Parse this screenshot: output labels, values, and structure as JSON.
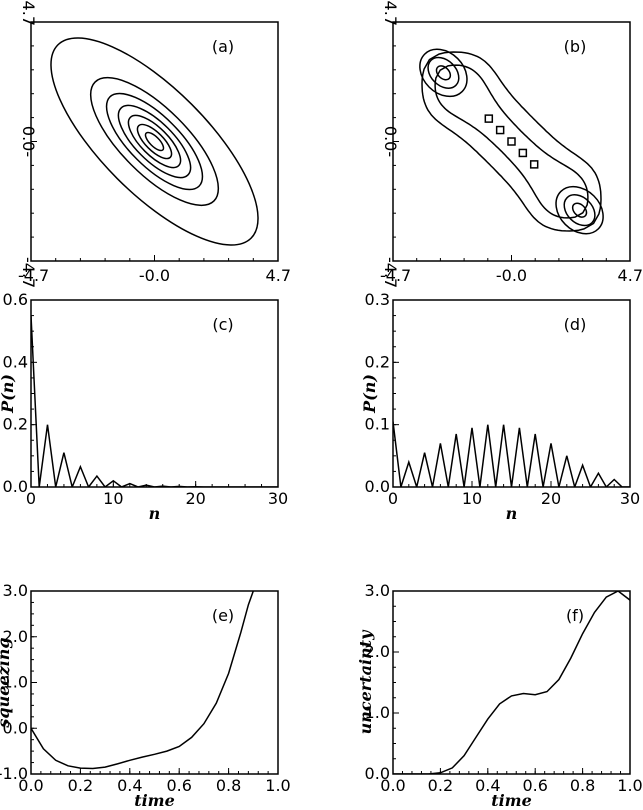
{
  "chart_data": [
    {
      "id": "a",
      "type": "contour",
      "panel_label": "(a)",
      "xlim": [
        -4.7,
        4.7
      ],
      "ylim": [
        -4.7,
        4.7
      ],
      "x_tick_labels": [
        "-4.7",
        "-0.0",
        "4.7"
      ],
      "y_tick_labels": [
        "-4.7",
        "0.0-",
        "4.7"
      ],
      "ellipses": [
        {
          "a": 5.2,
          "b": 2.0
        },
        {
          "a": 3.2,
          "b": 1.25
        },
        {
          "a": 2.4,
          "b": 0.95
        },
        {
          "a": 1.8,
          "b": 0.72
        },
        {
          "a": 1.3,
          "b": 0.52
        },
        {
          "a": 0.85,
          "b": 0.34
        },
        {
          "a": 0.45,
          "b": 0.18
        }
      ]
    },
    {
      "id": "b",
      "type": "contour",
      "panel_label": "(b)",
      "xlim": [
        -4.7,
        4.7
      ],
      "ylim": [
        -4.7,
        4.7
      ],
      "x_tick_labels": [
        "-4.7",
        "-0.0",
        "4.7"
      ],
      "y_tick_labels": [
        "-4.7",
        "0.0-",
        "4.7"
      ],
      "peaks": [
        {
          "x": -2.7,
          "y": 2.7
        },
        {
          "x": 2.7,
          "y": -2.7
        }
      ],
      "small_squares_y_equals_minus_x_at_x": [
        -0.9,
        -0.45,
        0.0,
        0.45,
        0.9
      ]
    },
    {
      "id": "c",
      "type": "line",
      "panel_label": "(c)",
      "xlabel": "n",
      "ylabel": "P(n)",
      "xlim": [
        0,
        30
      ],
      "ylim": [
        0,
        0.6
      ],
      "x_tick_labels": [
        "0",
        "10",
        "20",
        "30"
      ],
      "y_tick_labels": [
        "0.0",
        "0.2",
        "0.4",
        "0.6"
      ],
      "x": [
        0,
        1,
        2,
        3,
        4,
        5,
        6,
        7,
        8,
        9,
        10,
        11,
        12,
        13,
        14,
        15,
        16,
        17,
        18,
        19,
        20,
        21,
        22,
        23,
        24,
        25,
        26,
        27,
        28,
        29,
        30
      ],
      "y": [
        0.55,
        0.0,
        0.2,
        0.0,
        0.11,
        0.0,
        0.065,
        0.0,
        0.035,
        0.0,
        0.02,
        0.0,
        0.011,
        0.0,
        0.006,
        0.0,
        0.003,
        0.0,
        0.002,
        0.0,
        0.001,
        0.0,
        0.0,
        0.0,
        0.0,
        0.0,
        0.0,
        0.0,
        0.0,
        0.0,
        0.0
      ]
    },
    {
      "id": "d",
      "type": "line",
      "panel_label": "(d)",
      "xlabel": "n",
      "ylabel": "P(n)",
      "xlim": [
        0,
        30
      ],
      "ylim": [
        0,
        0.3
      ],
      "x_tick_labels": [
        "0",
        "10",
        "20",
        "30"
      ],
      "y_tick_labels": [
        "0.0",
        "0.1",
        "0.2",
        "0.3"
      ],
      "x": [
        0,
        1,
        2,
        3,
        4,
        5,
        6,
        7,
        8,
        9,
        10,
        11,
        12,
        13,
        14,
        15,
        16,
        17,
        18,
        19,
        20,
        21,
        22,
        23,
        24,
        25,
        26,
        27,
        28,
        29,
        30
      ],
      "y": [
        0.105,
        0.0,
        0.04,
        0.0,
        0.055,
        0.0,
        0.07,
        0.0,
        0.085,
        0.0,
        0.095,
        0.0,
        0.1,
        0.0,
        0.1,
        0.0,
        0.095,
        0.0,
        0.085,
        0.0,
        0.07,
        0.0,
        0.05,
        0.0,
        0.035,
        0.0,
        0.022,
        0.0,
        0.012,
        0.0,
        0.0
      ]
    },
    {
      "id": "e",
      "type": "line",
      "panel_label": "(e)",
      "xlabel": "time",
      "ylabel": "squeezing",
      "xlim": [
        0,
        1
      ],
      "ylim": [
        -1,
        3
      ],
      "x_tick_labels": [
        "0.0",
        "0.2",
        "0.4",
        "0.6",
        "0.8",
        "1.0"
      ],
      "y_tick_labels": [
        "-1.0",
        "0.0",
        "1.0",
        "2.0",
        "3.0"
      ],
      "x": [
        0.0,
        0.05,
        0.1,
        0.15,
        0.2,
        0.25,
        0.3,
        0.35,
        0.4,
        0.45,
        0.5,
        0.55,
        0.6,
        0.65,
        0.7,
        0.75,
        0.8,
        0.85,
        0.88,
        0.9
      ],
      "y": [
        0.0,
        -0.45,
        -0.7,
        -0.82,
        -0.87,
        -0.88,
        -0.85,
        -0.78,
        -0.7,
        -0.63,
        -0.57,
        -0.5,
        -0.4,
        -0.2,
        0.1,
        0.55,
        1.2,
        2.1,
        2.7,
        3.0
      ]
    },
    {
      "id": "f",
      "type": "line",
      "panel_label": "(f)",
      "xlabel": "time",
      "ylabel": "uncertainty",
      "xlim": [
        0,
        1
      ],
      "ylim": [
        0,
        3
      ],
      "x_tick_labels": [
        "0.0",
        "0.2",
        "0.4",
        "0.6",
        "0.8",
        "1.0"
      ],
      "y_tick_labels": [
        "0.0",
        "1.0",
        "2.0",
        "3.0"
      ],
      "x": [
        0.0,
        0.1,
        0.15,
        0.2,
        0.25,
        0.3,
        0.35,
        0.4,
        0.45,
        0.5,
        0.55,
        0.6,
        0.65,
        0.7,
        0.75,
        0.8,
        0.85,
        0.9,
        0.95,
        1.0
      ],
      "y": [
        0.0,
        0.0,
        0.0,
        0.02,
        0.1,
        0.3,
        0.6,
        0.9,
        1.15,
        1.28,
        1.32,
        1.3,
        1.35,
        1.55,
        1.9,
        2.3,
        2.65,
        2.9,
        3.0,
        2.85
      ]
    }
  ]
}
